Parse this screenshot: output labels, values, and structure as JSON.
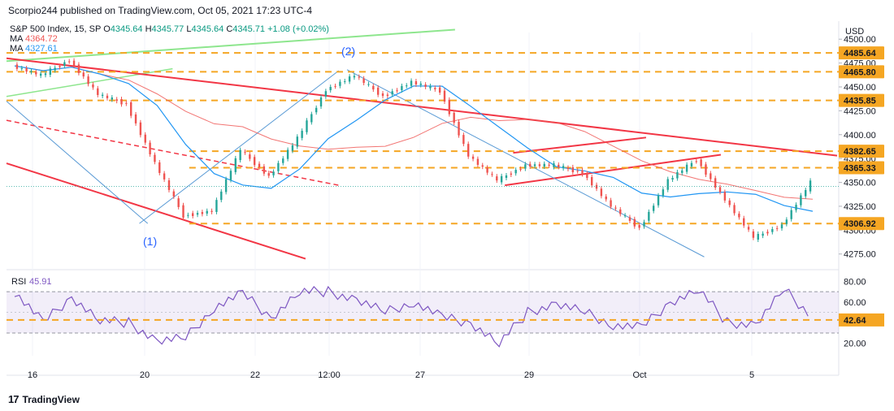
{
  "header": {
    "publisher": "Scorpio244 published on TradingView.com, Oct 05, 2021 17:23 UTC-4",
    "symbol": "S&P 500 Index, 15, SP",
    "open_label": "O",
    "open": "4345.64",
    "high_label": "H",
    "high": "4345.77",
    "low_label": "L",
    "low": "4345.64",
    "close_label": "C",
    "close": "4345.71",
    "change": "+1.08 (+0.02%)",
    "ma1_label": "MA",
    "ma1_value": "4364.72",
    "ma2_label": "MA",
    "ma2_value": "4327.61"
  },
  "footer": {
    "logo": "17",
    "brand": "TradingView"
  },
  "colors": {
    "up": "#26a69a",
    "down": "#ef5350",
    "ma_fast": "#2196f3",
    "ma_slow": "#ef5350",
    "levels": "#f5a623",
    "trend_red": "#f23645",
    "trend_green": "#8ee68e",
    "rsi": "#7e57c2",
    "label_box": "#f5a623"
  },
  "chart_data": [
    {
      "type": "candlestick",
      "title": "S&P 500 Index, 15, SP",
      "currency_label": "USD",
      "ylim": [
        4262,
        4507
      ],
      "y_ticks": [
        4500,
        4475,
        4450,
        4425,
        4400,
        4375,
        4350,
        4325,
        4300,
        4275
      ],
      "y_tick_labels": [
        "4500.00",
        "4475.00",
        "4450.00",
        "4425.00",
        "4400.00",
        "4375.00",
        "4350.00",
        "4325.00",
        "4300.00",
        "4275.00"
      ],
      "x_ticks": [
        "16",
        "20",
        "22",
        "12:00",
        "27",
        "29",
        "Oct",
        "5"
      ],
      "price_series": {
        "x": [
          "16",
          "16",
          "17",
          "17",
          "20",
          "20",
          "21",
          "21",
          "22",
          "22",
          "12:00",
          "12:00",
          "24",
          "24",
          "27",
          "27",
          "28",
          "28",
          "29",
          "29",
          "30",
          "30",
          "Oct",
          "Oct",
          "4",
          "4",
          "5",
          "5",
          "5b"
        ],
        "close": [
          4472,
          4462,
          4478,
          4442,
          4432,
          4370,
          4315,
          4320,
          4384,
          4356,
          4396,
          4447,
          4462,
          4440,
          4455,
          4446,
          4378,
          4352,
          4368,
          4368,
          4360,
          4325,
          4302,
          4352,
          4374,
          4332,
          4292,
          4305,
          4350
        ],
        "last": 4345.71
      },
      "moving_averages": [
        {
          "label": "MA",
          "value": 4364.72
        },
        {
          "label": "MA",
          "value": 4327.61
        }
      ],
      "horizontal_levels": [
        {
          "label": "4485.64",
          "value": 4485.64
        },
        {
          "label": "4465.80",
          "value": 4465.8
        },
        {
          "label": "4435.85",
          "value": 4435.85
        },
        {
          "label": "4382.65",
          "value": 4382.65
        },
        {
          "label": "4365.33",
          "value": 4365.33
        },
        {
          "label": "4306.92",
          "value": 4306.92
        }
      ],
      "annotations": [
        "(1)",
        "(2)"
      ]
    },
    {
      "type": "line",
      "title": "RSI",
      "value_label": "45.91",
      "ylim": [
        8,
        85
      ],
      "y_ticks": [
        80,
        60,
        20
      ],
      "y_tick_labels": [
        "80.00",
        "60.00",
        "20.00"
      ],
      "band": [
        30,
        70
      ],
      "level": {
        "label": "42.64",
        "value": 42.64
      },
      "series": {
        "x": [
          "16",
          "16",
          "17",
          "17",
          "20",
          "20",
          "21",
          "21",
          "22",
          "22",
          "12:00",
          "12:00",
          "24",
          "24",
          "27",
          "27",
          "28",
          "28",
          "29",
          "29",
          "30",
          "30",
          "Oct",
          "Oct",
          "4",
          "4",
          "5",
          "5",
          "5b"
        ],
        "values": [
          70,
          40,
          65,
          42,
          40,
          22,
          25,
          55,
          68,
          45,
          70,
          70,
          62,
          50,
          60,
          45,
          40,
          20,
          50,
          58,
          50,
          38,
          35,
          60,
          72,
          40,
          38,
          72,
          45
        ]
      }
    }
  ]
}
